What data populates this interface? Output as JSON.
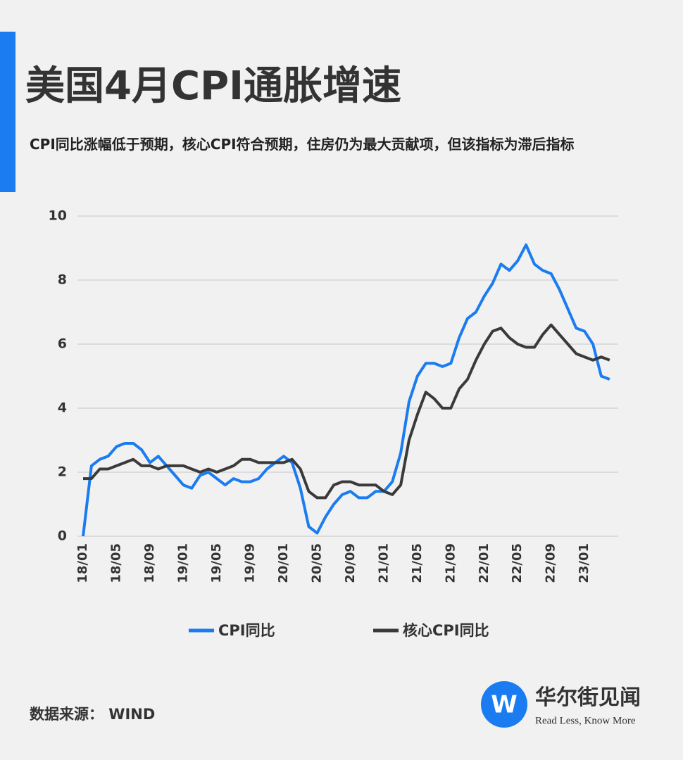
{
  "chart_data": {
    "type": "line",
    "title": "美国4月CPI通胀增速",
    "subtitle": "CPI同比涨幅低于预期，核心CPI符合预期，住房仍为最大贡献项，但该指标为滞后指标",
    "categories": [
      "18/01",
      null,
      null,
      null,
      "18/05",
      null,
      null,
      null,
      "18/09",
      null,
      null,
      null,
      "19/01",
      null,
      null,
      null,
      "19/05",
      null,
      null,
      null,
      "19/09",
      null,
      null,
      null,
      "20/01",
      null,
      null,
      null,
      "20/05",
      null,
      null,
      null,
      "20/09",
      null,
      null,
      null,
      "21/01",
      null,
      null,
      null,
      "21/05",
      null,
      null,
      null,
      "21/09",
      null,
      null,
      null,
      "22/01",
      null,
      null,
      null,
      "22/05",
      null,
      null,
      null,
      "22/09",
      null,
      null,
      null,
      "23/01",
      null,
      null,
      null
    ],
    "series": [
      {
        "name": "CPI同比",
        "color": "#1a7cf0",
        "values": [
          0,
          2.2,
          2.4,
          2.5,
          2.8,
          2.9,
          2.9,
          2.7,
          2.3,
          2.5,
          2.2,
          1.9,
          1.6,
          1.5,
          1.9,
          2.0,
          1.8,
          1.6,
          1.8,
          1.7,
          1.7,
          1.8,
          2.1,
          2.3,
          2.5,
          2.3,
          1.5,
          0.3,
          0.1,
          0.6,
          1.0,
          1.3,
          1.4,
          1.2,
          1.2,
          1.4,
          1.4,
          1.7,
          2.6,
          4.2,
          5.0,
          5.4,
          5.4,
          5.3,
          5.4,
          6.2,
          6.8,
          7.0,
          7.5,
          7.9,
          8.5,
          8.3,
          8.6,
          9.1,
          8.5,
          8.3,
          8.2,
          7.7,
          7.1,
          6.5,
          6.4,
          6.0,
          5.0,
          4.9
        ]
      },
      {
        "name": "核心CPI同比",
        "color": "#3a3a3a",
        "values": [
          1.8,
          1.8,
          2.1,
          2.1,
          2.2,
          2.3,
          2.4,
          2.2,
          2.2,
          2.1,
          2.2,
          2.2,
          2.2,
          2.1,
          2.0,
          2.1,
          2.0,
          2.1,
          2.2,
          2.4,
          2.4,
          2.3,
          2.3,
          2.3,
          2.3,
          2.4,
          2.1,
          1.4,
          1.2,
          1.2,
          1.6,
          1.7,
          1.7,
          1.6,
          1.6,
          1.6,
          1.4,
          1.3,
          1.6,
          3.0,
          3.8,
          4.5,
          4.3,
          4.0,
          4.0,
          4.6,
          4.9,
          5.5,
          6.0,
          6.4,
          6.5,
          6.2,
          6.0,
          5.9,
          5.9,
          6.3,
          6.6,
          6.3,
          6.0,
          5.7,
          5.6,
          5.5,
          5.6,
          5.5
        ]
      }
    ],
    "ylim": [
      0,
      10
    ],
    "yticks": [
      0,
      2,
      4,
      6,
      8,
      10
    ],
    "grid": true,
    "source": "数据来源：  WIND",
    "brand": {
      "name": "华尔街见闻",
      "slogan": "Read Less, Know More"
    }
  }
}
